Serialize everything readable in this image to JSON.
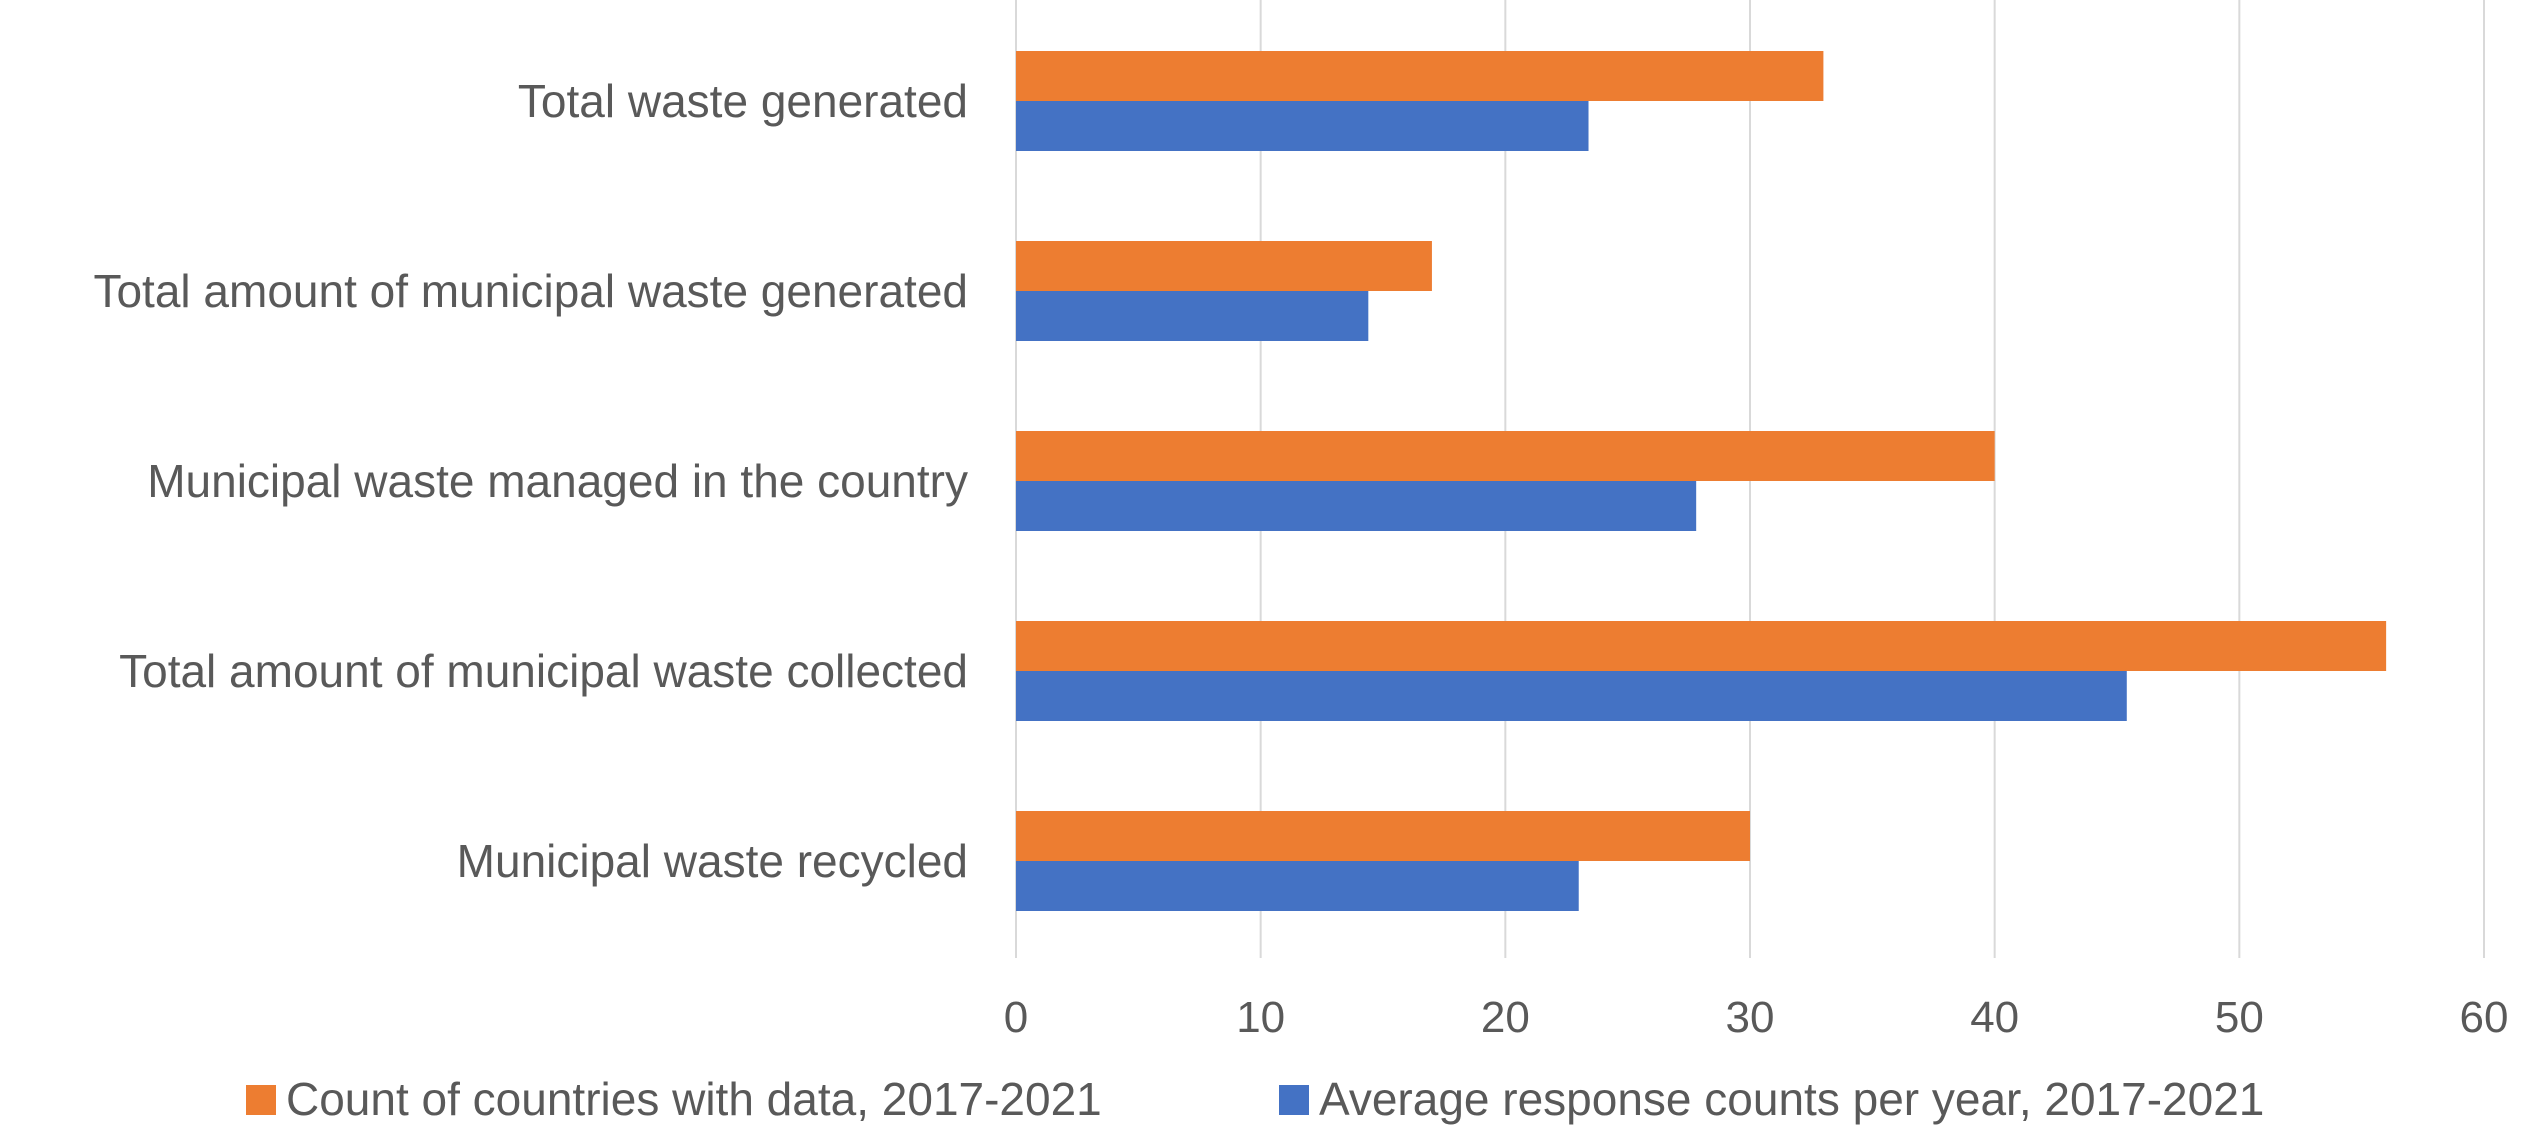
{
  "chart_data": {
    "type": "bar",
    "orientation": "horizontal",
    "categories": [
      "Total waste generated",
      "Total amount of municipal waste generated",
      "Municipal waste managed in the country",
      "Total amount of municipal waste collected",
      "Municipal waste recycled"
    ],
    "series": [
      {
        "name": "Count of countries with data, 2017-2021",
        "color": "#ED7D31",
        "values": [
          33,
          17,
          40,
          56,
          30
        ]
      },
      {
        "name": "Average response counts per year, 2017-2021",
        "color": "#4472C4",
        "values": [
          23.4,
          14.4,
          27.8,
          45.4,
          23
        ]
      }
    ],
    "xlim": [
      0,
      60
    ],
    "xticks": [
      "0",
      "10",
      "20",
      "30",
      "40",
      "50",
      "60"
    ],
    "title": "",
    "xlabel": "",
    "ylabel": "",
    "grid": "vertical",
    "legend_position": "bottom",
    "gridline_color": "#D9D9D9",
    "text_color": "#595959"
  }
}
